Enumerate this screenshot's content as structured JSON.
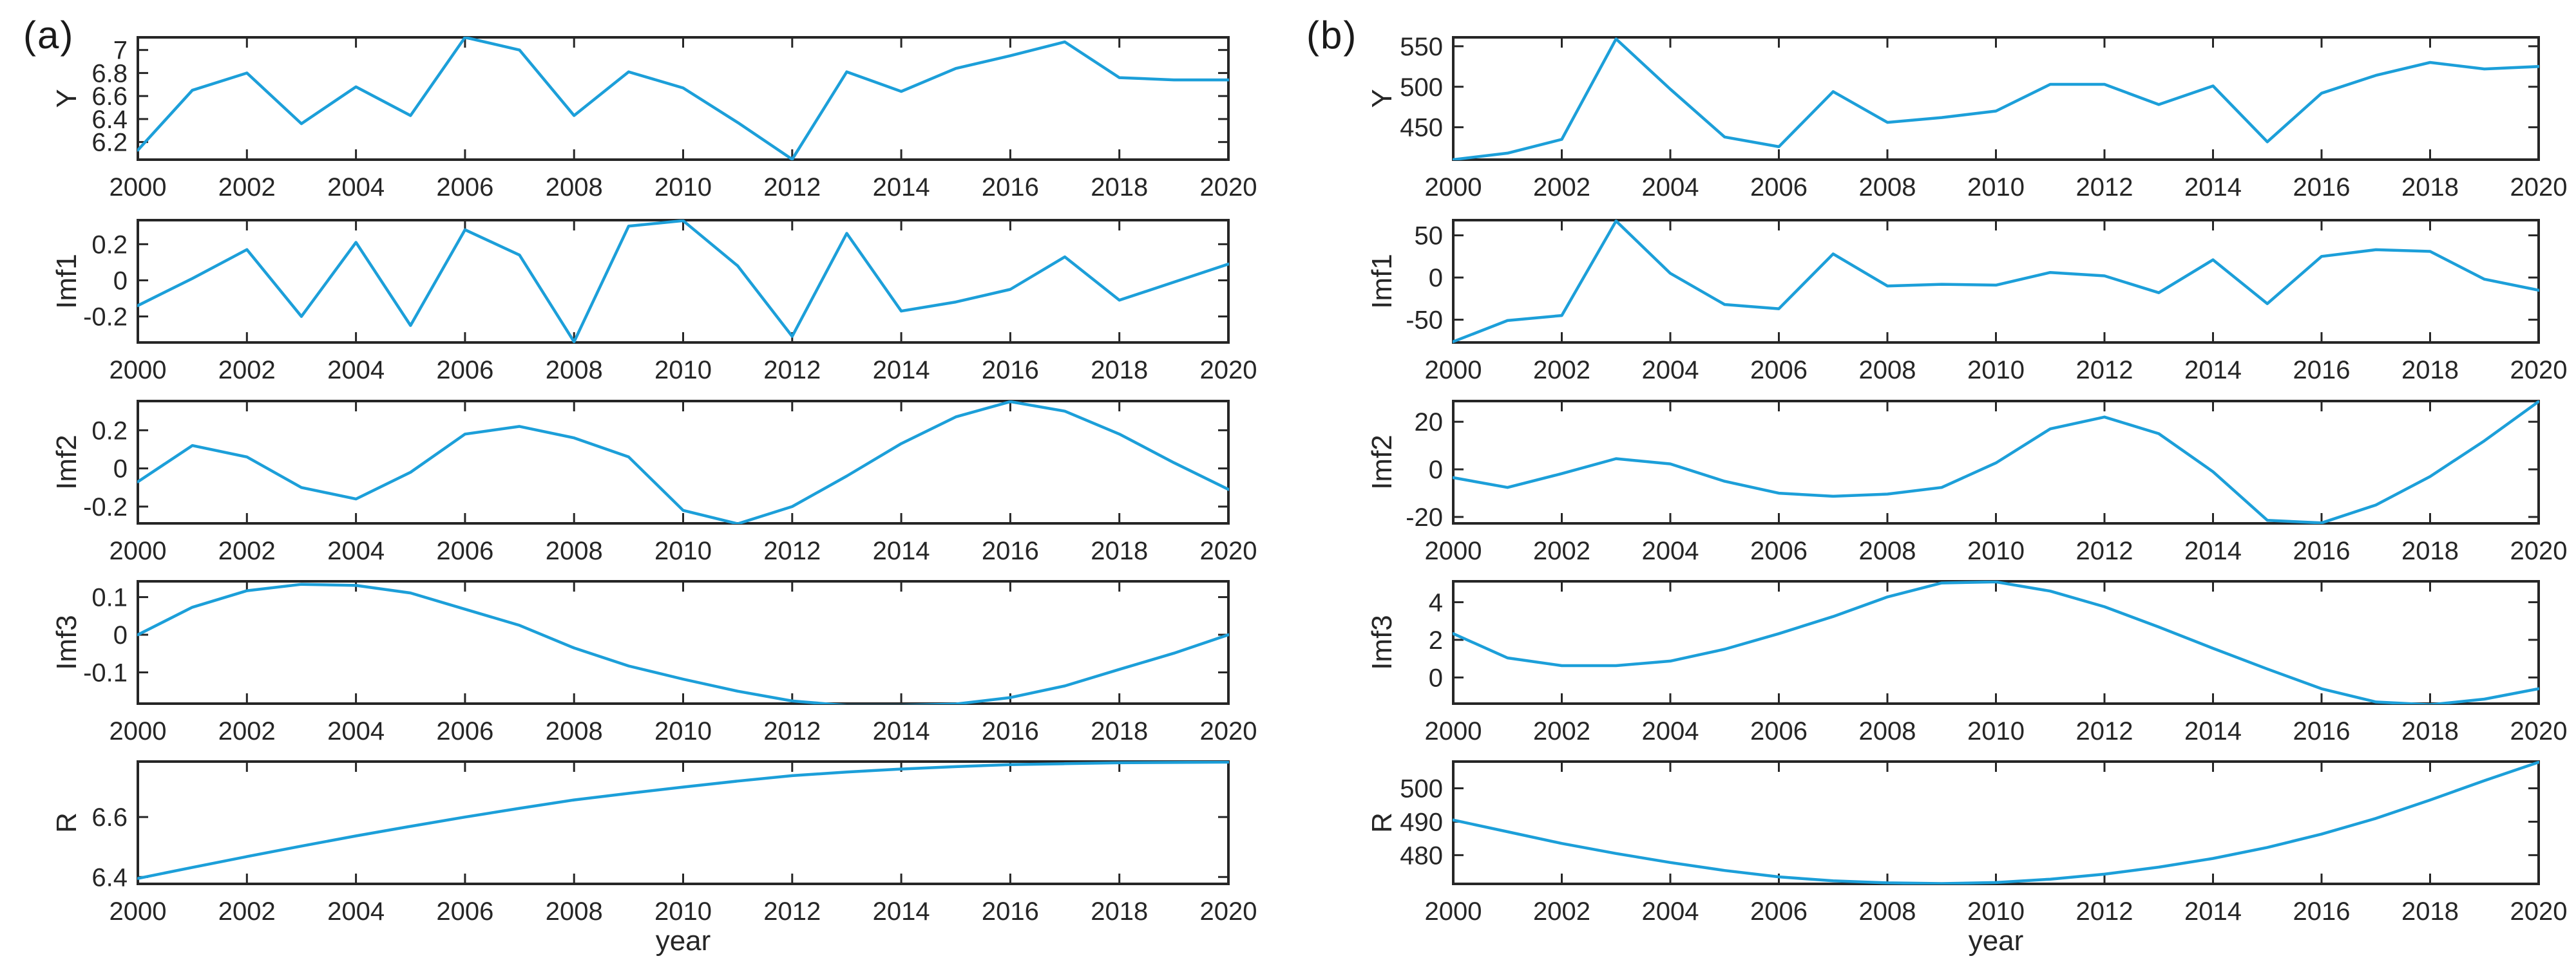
{
  "figure": {
    "description": "Two-panel time-series decomposition figure: original series Y and components Imf1, Imf2, Imf3, residual R, 2000-2020",
    "panel_labels": [
      "(a)",
      "(b)"
    ],
    "line_color": "#1c9fd9",
    "axis_color": "#262626"
  },
  "chart_data": [
    {
      "panel_id": "a",
      "label": "(a)",
      "type": "line",
      "grid": false,
      "legend": null,
      "xlabel": "year",
      "x": [
        2000,
        2001,
        2002,
        2003,
        2004,
        2005,
        2006,
        2007,
        2008,
        2009,
        2010,
        2011,
        2012,
        2013,
        2014,
        2015,
        2016,
        2017,
        2018,
        2019,
        2020
      ],
      "x_ticks": [
        2000,
        2002,
        2004,
        2006,
        2008,
        2010,
        2012,
        2014,
        2016,
        2018,
        2020
      ],
      "line_color": "#1c9fd9",
      "subplots": [
        {
          "ylabel": "Y",
          "y_ticks": [
            6.2,
            6.4,
            6.6,
            6.8,
            7
          ],
          "ylim": [
            6.047,
            7.11
          ],
          "values": [
            6.13,
            6.65,
            6.8,
            6.36,
            6.68,
            6.43,
            7.11,
            7.0,
            6.43,
            6.81,
            6.67,
            6.37,
            6.05,
            6.81,
            6.64,
            6.84,
            6.95,
            7.07,
            6.76,
            6.74,
            6.74
          ]
        },
        {
          "ylabel": "Imf1",
          "y_ticks": [
            -0.2,
            0,
            0.2
          ],
          "ylim": [
            -0.344,
            0.333
          ],
          "values": [
            -0.14,
            0.01,
            0.17,
            -0.2,
            0.21,
            -0.25,
            0.28,
            0.14,
            -0.34,
            0.3,
            0.33,
            0.08,
            -0.31,
            0.26,
            -0.17,
            -0.12,
            -0.05,
            0.13,
            -0.11,
            -0.01,
            0.09
          ]
        },
        {
          "ylabel": "Imf2",
          "y_ticks": [
            -0.2,
            0,
            0.2
          ],
          "ylim": [
            -0.288,
            0.353
          ],
          "values": [
            -0.07,
            0.12,
            0.06,
            -0.1,
            -0.16,
            -0.02,
            0.18,
            0.22,
            0.16,
            0.06,
            -0.22,
            -0.29,
            -0.2,
            -0.04,
            0.13,
            0.27,
            0.35,
            0.3,
            0.18,
            0.03,
            -0.11
          ]
        },
        {
          "ylabel": "Imf3",
          "y_ticks": [
            -0.1,
            0,
            0.1
          ],
          "ylim": [
            -0.183,
            0.142
          ],
          "values": [
            0.0,
            0.073,
            0.117,
            0.134,
            0.131,
            0.111,
            0.068,
            0.025,
            -0.035,
            -0.083,
            -0.118,
            -0.15,
            -0.176,
            -0.188,
            -0.188,
            -0.184,
            -0.167,
            -0.136,
            -0.092,
            -0.049,
            0.0
          ]
        },
        {
          "ylabel": "R",
          "y_ticks": [
            6.4,
            6.6
          ],
          "ylim": [
            6.377,
            6.785
          ],
          "values": [
            6.395,
            6.432,
            6.468,
            6.503,
            6.537,
            6.569,
            6.6,
            6.629,
            6.657,
            6.679,
            6.7,
            6.72,
            6.738,
            6.75,
            6.76,
            6.768,
            6.775,
            6.778,
            6.781,
            6.782,
            6.783
          ]
        }
      ]
    },
    {
      "panel_id": "b",
      "label": "(b)",
      "type": "line",
      "grid": false,
      "legend": null,
      "xlabel": "year",
      "x": [
        2000,
        2001,
        2002,
        2003,
        2004,
        2005,
        2006,
        2007,
        2008,
        2009,
        2010,
        2011,
        2012,
        2013,
        2014,
        2015,
        2016,
        2017,
        2018,
        2019,
        2020
      ],
      "x_ticks": [
        2000,
        2002,
        2004,
        2006,
        2008,
        2010,
        2012,
        2014,
        2016,
        2018,
        2020
      ],
      "line_color": "#1c9fd9",
      "subplots": [
        {
          "ylabel": "Y",
          "y_ticks": [
            450,
            500,
            550
          ],
          "ylim": [
            410,
            561
          ],
          "values": [
            410,
            418,
            435,
            559,
            497,
            438,
            426,
            494,
            456,
            462,
            470,
            503,
            503,
            478,
            501,
            432,
            492,
            514,
            530,
            522,
            525
          ]
        },
        {
          "ylabel": "Imf1",
          "y_ticks": [
            -50,
            0,
            50
          ],
          "ylim": [
            -77,
            68
          ],
          "values": [
            -76,
            -51,
            -45,
            67,
            5,
            -32,
            -37,
            28,
            -10,
            -8,
            -9,
            6,
            2,
            -18,
            21,
            -31,
            25,
            33,
            31,
            -2,
            -15
          ]
        },
        {
          "ylabel": "Imf2",
          "y_ticks": [
            -20,
            0,
            20
          ],
          "ylim": [
            -22.7,
            28.7
          ],
          "values": [
            -3.5,
            -7.6,
            -1.8,
            4.5,
            2.3,
            -5,
            -10,
            -11.3,
            -10.4,
            -7.6,
            2.7,
            17,
            22,
            15,
            -1,
            -21.4,
            -22.5,
            -15,
            -3,
            12,
            28.5
          ]
        },
        {
          "ylabel": "Imf3",
          "y_ticks": [
            0,
            2,
            4
          ],
          "ylim": [
            -1.39,
            5.11
          ],
          "values": [
            2.33,
            1.04,
            0.63,
            0.63,
            0.87,
            1.5,
            2.33,
            3.24,
            4.28,
            5.02,
            5.08,
            4.59,
            3.76,
            2.68,
            1.55,
            0.45,
            -0.6,
            -1.3,
            -1.45,
            -1.15,
            -0.6
          ]
        },
        {
          "ylabel": "R",
          "y_ticks": [
            480,
            490,
            500
          ],
          "ylim": [
            471.4,
            508
          ],
          "values": [
            490.5,
            487.0,
            483.5,
            480.5,
            477.8,
            475.4,
            473.5,
            472.3,
            471.7,
            471.5,
            471.8,
            472.8,
            474.3,
            476.4,
            479.0,
            482.3,
            486.3,
            491.0,
            496.5,
            502.3,
            507.8
          ]
        }
      ]
    }
  ]
}
